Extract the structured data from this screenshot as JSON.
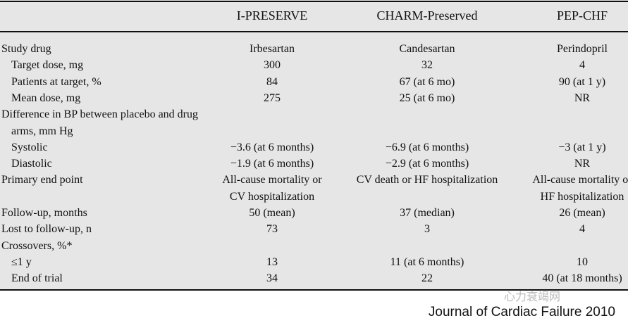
{
  "columns": [
    "I-PRESERVE",
    "CHARM-Preserved",
    "PEP-CHF"
  ],
  "rows": [
    {
      "label": "Study drug",
      "indent": false,
      "values": [
        "Irbesartan",
        "Candesartan",
        "Perindopril"
      ]
    },
    {
      "label": "Target dose, mg",
      "indent": true,
      "values": [
        "300",
        "32",
        "4"
      ]
    },
    {
      "label": "Patients at target, %",
      "indent": true,
      "values": [
        "84",
        "67 (at 6 mo)",
        "90 (at 1 y)"
      ]
    },
    {
      "label": "Mean dose, mg",
      "indent": true,
      "values": [
        "275",
        "25 (at 6 mo)",
        "NR"
      ]
    },
    {
      "label": "Difference in BP between placebo and drug",
      "indent": false,
      "values": [
        "",
        "",
        ""
      ]
    },
    {
      "label": "arms, mm Hg",
      "indent": true,
      "values": [
        "",
        "",
        ""
      ]
    },
    {
      "label": "Systolic",
      "indent": true,
      "values": [
        "−3.6 (at 6 months)",
        "−6.9 (at 6 months)",
        "−3 (at 1 y)"
      ]
    },
    {
      "label": "Diastolic",
      "indent": true,
      "values": [
        "−1.9 (at 6 months)",
        "−2.9 (at 6 months)",
        "NR"
      ]
    },
    {
      "label": "Primary end point",
      "indent": false,
      "values": [
        "All-cause mortality or",
        "CV death or HF hospitalization",
        "All-cause mortality or"
      ]
    },
    {
      "label": "",
      "indent": false,
      "values": [
        "CV hospitalization",
        "",
        "HF hospitalization"
      ]
    },
    {
      "label": "Follow-up, months",
      "indent": false,
      "values": [
        "50 (mean)",
        "37 (median)",
        "26 (mean)"
      ]
    },
    {
      "label": "Lost to follow-up, n",
      "indent": false,
      "values": [
        "73",
        "3",
        "4"
      ]
    },
    {
      "label": "Crossovers, %*",
      "indent": false,
      "values": [
        "",
        "",
        ""
      ]
    },
    {
      "label": "≤1 y",
      "indent": true,
      "values": [
        "13",
        "11 (at 6 months)",
        "10"
      ]
    },
    {
      "label": "End of trial",
      "indent": true,
      "values": [
        "34",
        "22",
        "40 (at 18 months)"
      ]
    }
  ],
  "watermark": "心力衰竭网",
  "source": "Journal of Cardiac Failure 2010"
}
